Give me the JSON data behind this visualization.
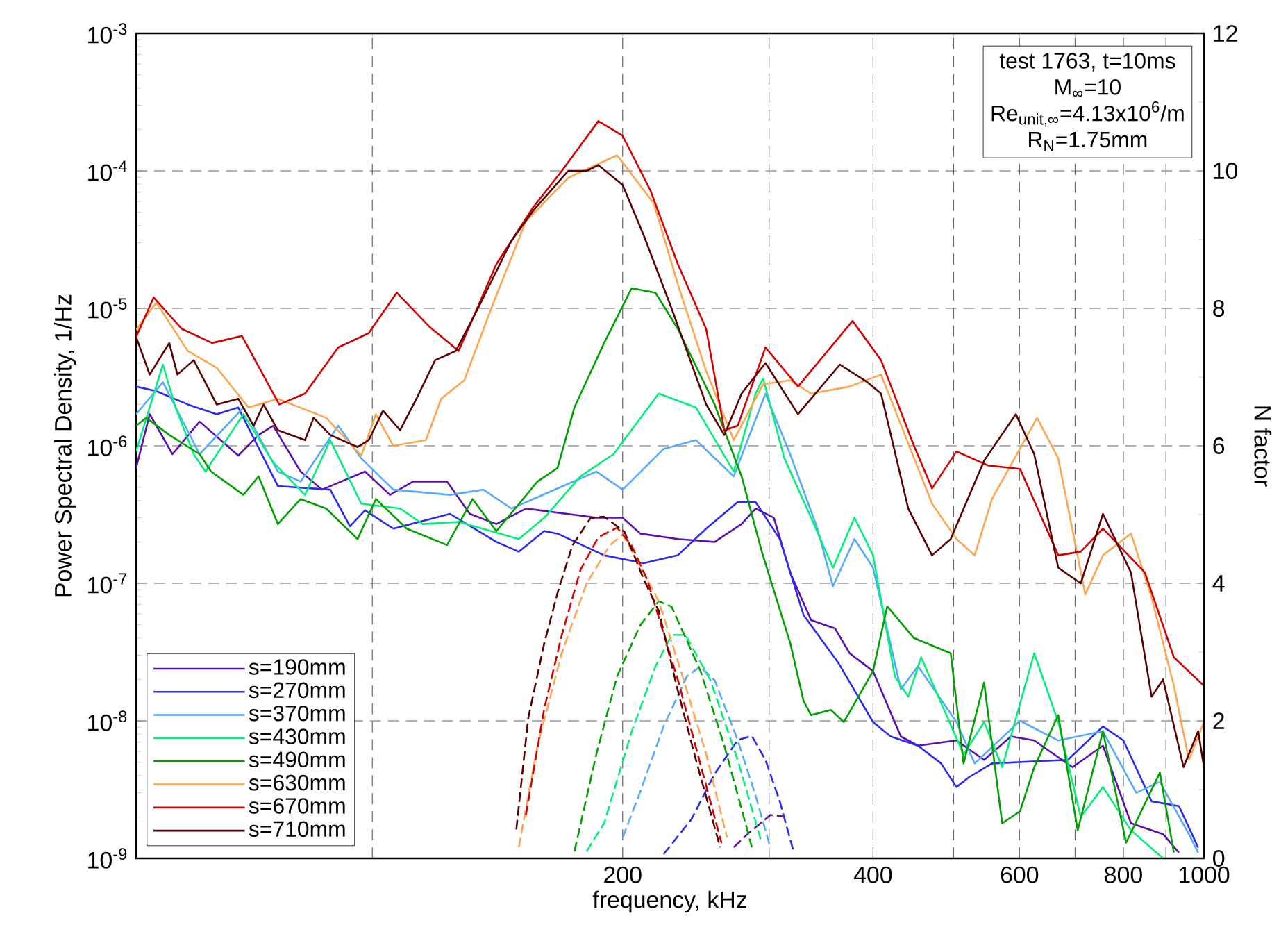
{
  "chart_data": {
    "type": "line",
    "xlabel": "frequency, kHz",
    "ylabel": "Power Spectral Density, 1/Hz",
    "y2label": "N factor",
    "log": "xy",
    "grid": true,
    "legend": "bottom left",
    "marker": "none",
    "xlim": [
      52,
      1000
    ],
    "ylim": [
      1e-09,
      0.001
    ],
    "y2lim": [
      0,
      12
    ],
    "xticks": [
      {
        "value": 100,
        "label": null
      },
      200,
      {
        "value": 300,
        "label": null
      },
      400,
      {
        "value": 500,
        "label": null
      },
      600,
      {
        "value": 700,
        "label": null
      },
      800,
      {
        "value": 900,
        "label": null
      },
      1000
    ],
    "yticks": [
      {
        "value": 1e-09,
        "label": "10$^{-9}$"
      },
      {
        "value": 1e-08,
        "label": "10$^{-8}$"
      },
      {
        "value": 1e-07,
        "label": "10$^{-7}$"
      },
      {
        "value": 1e-06,
        "label": "10$^{-6}$"
      },
      {
        "value": 1e-05,
        "label": "10$^{-5}$"
      },
      {
        "value": 0.0001,
        "label": "10$^{-4}$"
      },
      {
        "value": 0.001,
        "label": "10$^{-3}$"
      }
    ],
    "y2ticks": [
      0,
      2,
      4,
      6,
      8,
      10,
      12
    ],
    "annotations": [
      "test 1763, t=10ms",
      "M$_{∞}$=10",
      "Re$_{unit,∞}$=4.13x10$^{6}$/m",
      "R$_{N}$=1.75mm"
    ],
    "series": [
      {
        "name": "s=190mm",
        "color": "#5b0fae",
        "line_style": "solid",
        "x": [
          52,
          54,
          57.5,
          62,
          69,
          73,
          76,
          82,
          87,
          98,
          105,
          112,
          123,
          131,
          141,
          153,
          186,
          200,
          210,
          233,
          258,
          278,
          289,
          304,
          318,
          337,
          360,
          375,
          400,
          432,
          453,
          504,
          544,
          586,
          625,
          695,
          756,
          817,
          893,
          933
        ],
        "values": [
          6.9e-07,
          1.7e-06,
          8.7e-07,
          1.5e-06,
          8.5e-07,
          1.2e-06,
          1.4e-06,
          6.5e-07,
          4.8e-07,
          6.5e-07,
          4.4e-07,
          5.5e-07,
          5.5e-07,
          3.2e-07,
          2.7e-07,
          3.5e-07,
          3e-07,
          3e-07,
          2.3e-07,
          2.1e-07,
          2e-07,
          2.7e-07,
          3.5e-07,
          3e-07,
          1.2e-07,
          5.4e-08,
          4.7e-08,
          3.1e-08,
          2.3e-08,
          7.7e-09,
          6.6e-09,
          7.2e-09,
          5.2e-09,
          7.7e-09,
          7.2e-09,
          4.6e-09,
          6.6e-09,
          1.8e-09,
          1.5e-09,
          1.1e-09
        ]
      },
      {
        "name": "s=270mm",
        "color": "#2a2af5",
        "line_style": "solid",
        "x": [
          52,
          55,
          60,
          65,
          69,
          77,
          89,
          94,
          98,
          106,
          124,
          141,
          150,
          161,
          167,
          190,
          212,
          233,
          252,
          275,
          289,
          309,
          330,
          364,
          400,
          420,
          453,
          483,
          504,
          522,
          556,
          635,
          686,
          756,
          800,
          865,
          933,
          984
        ],
        "values": [
          2.7e-06,
          2.5e-06,
          2e-06,
          1.7e-06,
          1.9e-06,
          5.1e-07,
          4.8e-07,
          2.6e-07,
          3.4e-07,
          2.5e-07,
          3.2e-07,
          2e-07,
          1.7e-07,
          2.4e-07,
          2.3e-07,
          1.6e-07,
          1.4e-07,
          1.6e-07,
          2.5e-07,
          3.9e-07,
          3.9e-07,
          2.1e-07,
          5.9e-08,
          2.6e-08,
          9.8e-09,
          7.7e-09,
          6.6e-09,
          4.9e-09,
          3.3e-09,
          3.9e-09,
          4.9e-09,
          5.1e-09,
          5.2e-09,
          9.1e-09,
          7.2e-09,
          2.6e-09,
          2.4e-09,
          1.2e-09
        ]
      },
      {
        "name": "s=370mm",
        "color": "#55aaff",
        "line_style": "solid",
        "x": [
          52,
          56,
          62,
          70,
          77,
          82,
          91,
          97,
          106,
          124,
          136,
          147,
          186,
          200,
          224,
          245,
          272,
          297,
          318,
          343,
          358,
          380,
          400,
          432,
          453,
          504,
          530,
          601,
          668,
          756,
          829,
          885,
          959,
          984
        ],
        "values": [
          1.7e-06,
          2.9e-06,
          8.7e-07,
          1.9e-06,
          6.5e-07,
          5.5e-07,
          1.4e-06,
          8.1e-07,
          4.8e-07,
          4.4e-07,
          4.8e-07,
          3.5e-07,
          6.5e-07,
          4.8e-07,
          9.5e-07,
          1.1e-06,
          6e-07,
          2.4e-06,
          8.7e-07,
          2.5e-07,
          9.5e-08,
          2.1e-07,
          1.3e-07,
          1.7e-08,
          2.5e-08,
          9.8e-09,
          4.9e-09,
          1e-08,
          7.2e-09,
          8.4e-09,
          3e-09,
          3.6e-09,
          1.5e-09,
          1.1e-09
        ]
      },
      {
        "name": "s=430mm",
        "color": "#00f07a",
        "line_style": "solid",
        "x": [
          52,
          56,
          58,
          61,
          63,
          70,
          76,
          83,
          89,
          97,
          108,
          115,
          127,
          150,
          161,
          178,
          195,
          221,
          245,
          272,
          289,
          295,
          313,
          337,
          358,
          380,
          400,
          425,
          441,
          457,
          514,
          544,
          572,
          625,
          668,
          711,
          756,
          817,
          893
        ],
        "values": [
          9.1e-07,
          3.9e-06,
          1.9e-06,
          8.7e-07,
          6.5e-07,
          1.7e-06,
          7.6e-07,
          4.4e-07,
          1.1e-06,
          3.8e-07,
          3.5e-07,
          2.7e-07,
          2.8e-07,
          2.1e-07,
          3e-07,
          6e-07,
          8.7e-07,
          2.4e-06,
          1.9e-06,
          6.5e-07,
          2.4e-06,
          3.1e-06,
          8.1e-07,
          3e-07,
          1.3e-07,
          3e-07,
          1.6e-07,
          2.1e-08,
          1.5e-08,
          2.9e-08,
          5.7e-09,
          9.8e-09,
          4.6e-09,
          3.1e-08,
          9.8e-09,
          2e-09,
          3.3e-09,
          1.6e-09,
          1e-09
        ]
      },
      {
        "name": "s=490mm",
        "color": "#00a000",
        "line_style": "solid",
        "x": [
          52,
          53.5,
          57,
          62,
          64,
          70,
          73,
          77,
          82,
          88,
          96,
          101,
          110,
          123,
          132,
          141,
          158,
          167,
          175,
          190,
          205,
          219,
          233,
          258,
          278,
          294,
          318,
          330,
          337,
          356,
          369,
          400,
          416,
          448,
          496,
          514,
          544,
          572,
          601,
          625,
          668,
          705,
          756,
          806,
          885,
          920
        ],
        "values": [
          1.4e-06,
          1.6e-06,
          1.2e-06,
          8.7e-07,
          6.5e-07,
          4.4e-07,
          6e-07,
          2.7e-07,
          4.1e-07,
          3.5e-07,
          2.1e-07,
          4.1e-07,
          2.5e-07,
          1.9e-07,
          4.1e-07,
          2.4e-07,
          5.5e-07,
          6.9e-07,
          1.9e-06,
          5.6e-06,
          1.4e-05,
          1.3e-05,
          7.1e-06,
          2e-06,
          6e-07,
          1.7e-07,
          3.7e-08,
          1.4e-08,
          1.1e-08,
          1.2e-08,
          9.8e-09,
          2.3e-08,
          6.8e-08,
          4e-08,
          3.1e-08,
          4.9e-09,
          1.9e-08,
          1.8e-09,
          2.2e-09,
          4.6e-09,
          1.1e-08,
          1.6e-09,
          8.4e-09,
          1.3e-09,
          4.2e-09,
          1.1e-09
        ]
      },
      {
        "name": "s=630mm",
        "color": "#ffa54f",
        "line_style": "solid",
        "x": [
          52,
          55,
          60,
          65,
          71,
          77,
          88,
          97,
          101,
          106,
          116,
          121,
          129,
          139,
          153,
          172,
          197,
          218,
          233,
          252,
          272,
          295,
          318,
          337,
          375,
          409,
          471,
          504,
          530,
          556,
          630,
          668,
          720,
          756,
          817,
          865,
          920,
          959,
          1000
        ],
        "values": [
          7e-06,
          1.1e-05,
          4.9e-06,
          3.7e-06,
          1.9e-06,
          2.2e-06,
          1.6e-06,
          8.5e-07,
          1.7e-06,
          1e-06,
          1.1e-06,
          2.2e-06,
          3e-06,
          1e-05,
          4.3e-05,
          8.9e-05,
          0.00013,
          5.8e-05,
          1.5e-05,
          3.5e-06,
          1.1e-06,
          2.8e-06,
          3e-06,
          2.4e-06,
          2.7e-06,
          3.3e-06,
          3.8e-07,
          2.1e-07,
          1.6e-07,
          4.1e-07,
          1.6e-06,
          8.1e-07,
          8.3e-08,
          1.6e-07,
          2.3e-07,
          7.9e-08,
          1.8e-08,
          5.2e-09,
          9.8e-09
        ]
      },
      {
        "name": "s=670mm",
        "color": "#d40000",
        "line_style": "solid",
        "x": [
          52,
          54.6,
          59,
          64.2,
          69.7,
          77.3,
          83,
          91,
          99,
          107,
          117,
          127,
          141,
          156,
          169,
          187,
          200,
          216,
          233,
          252,
          265,
          275,
          297,
          325,
          378,
          409,
          448,
          471,
          504,
          550,
          601,
          668,
          711,
          756,
          849,
          920,
          1000
        ],
        "values": [
          6.2e-06,
          1.2e-05,
          7.1e-06,
          5.6e-06,
          6.3e-06,
          2e-06,
          2.4e-06,
          5.2e-06,
          6.6e-06,
          1.3e-05,
          7.4e-06,
          4.9e-06,
          2.1e-05,
          5.4e-05,
          0.0001,
          0.00023,
          0.00018,
          7.2e-05,
          2.1e-05,
          7.1e-06,
          1.3e-06,
          1.4e-06,
          5.2e-06,
          2.7e-06,
          8.1e-06,
          4.2e-06,
          1e-06,
          4.9e-07,
          9.1e-07,
          7.2e-07,
          6.8e-07,
          1.6e-07,
          1.7e-07,
          2.5e-07,
          1.2e-07,
          2.9e-08,
          1.8e-08
        ]
      },
      {
        "name": "s=710mm",
        "color": "#5a0000",
        "line_style": "solid",
        "x": [
          52,
          54,
          57,
          58.3,
          61,
          65,
          69,
          72,
          74,
          77,
          83,
          85,
          89,
          96,
          99,
          103,
          108,
          113,
          119,
          126,
          134,
          147,
          156,
          172,
          181,
          187,
          200,
          212,
          229,
          252,
          265,
          278,
          297,
          325,
          365,
          394,
          409,
          441,
          471,
          496,
          544,
          594,
          625,
          668,
          711,
          756,
          817,
          865,
          893,
          945,
          984,
          1000
        ],
        "values": [
          6.2e-06,
          3.3e-06,
          5.6e-06,
          3.3e-06,
          4.2e-06,
          2e-06,
          2.2e-06,
          1.4e-06,
          2e-06,
          1.3e-06,
          1.1e-06,
          1.6e-06,
          1.2e-06,
          9.8e-07,
          1.1e-06,
          1.8e-06,
          1.3e-06,
          2.2e-06,
          4.2e-06,
          4.9e-06,
          1e-05,
          3.1e-05,
          5.1e-05,
          0.0001,
          0.0001,
          0.00011,
          7.9e-05,
          3.4e-05,
          1e-05,
          2e-06,
          1.2e-06,
          2.4e-06,
          4e-06,
          1.7e-06,
          3.9e-06,
          2.9e-06,
          2.4e-06,
          3.5e-07,
          1.6e-07,
          2.1e-07,
          7.8e-07,
          1.7e-06,
          8.7e-07,
          1.3e-07,
          1e-07,
          3.2e-07,
          1.2e-07,
          1.5e-08,
          2e-08,
          4.6e-09,
          8.4e-09,
          4.6e-09
        ]
      },
      {
        "color": "#5b0fae",
        "line_style": "dashed",
        "axis": "y2",
        "x": [
          272,
          283,
          301,
          313
        ],
        "values": [
          0.16,
          0.36,
          0.63,
          0.61
        ]
      },
      {
        "color": "#2a2af5",
        "line_style": "dashed",
        "axis": "y2",
        "x": [
          224,
          242,
          258,
          275,
          286,
          297,
          309,
          321
        ],
        "values": [
          0.06,
          0.57,
          1.23,
          1.72,
          1.78,
          1.43,
          0.83,
          0.1
        ]
      },
      {
        "color": "#55aaff",
        "line_style": "dashed",
        "axis": "y2",
        "x": [
          200,
          210,
          224,
          239,
          248,
          258,
          275,
          289,
          301
        ],
        "values": [
          0.3,
          0.97,
          1.92,
          2.65,
          2.79,
          2.59,
          1.72,
          0.91,
          0.16
        ]
      },
      {
        "color": "#00f07a",
        "line_style": "dashed",
        "axis": "y2",
        "x": [
          181,
          190,
          205,
          219,
          229,
          238,
          255,
          275,
          294
        ],
        "values": [
          0.1,
          0.51,
          1.84,
          2.79,
          3.25,
          3.25,
          2.59,
          1.43,
          0.22
        ]
      },
      {
        "color": "#00a000",
        "line_style": "dashed",
        "axis": "y2",
        "x": [
          175,
          186,
          197,
          210,
          221,
          229,
          248,
          265,
          281,
          286
        ],
        "values": [
          0.1,
          1.52,
          2.65,
          3.39,
          3.74,
          3.66,
          2.73,
          1.64,
          0.51,
          0.16
        ]
      },
      {
        "color": "#ffa54f",
        "line_style": "dashed",
        "axis": "y2",
        "x": [
          150,
          158,
          169,
          181,
          193,
          200,
          208,
          221,
          236,
          252,
          267
        ],
        "values": [
          0.16,
          1.64,
          2.99,
          4.0,
          4.55,
          4.71,
          4.34,
          3.74,
          2.65,
          1.52,
          0.3
        ]
      },
      {
        "color": "#d40000",
        "line_style": "dashed",
        "axis": "y2",
        "x": [
          153,
          161,
          169,
          178,
          187,
          197,
          205,
          214,
          234,
          248,
          263
        ],
        "values": [
          0.63,
          2.18,
          3.25,
          4.2,
          4.67,
          4.81,
          4.55,
          4.06,
          2.52,
          1.37,
          0.22
        ]
      },
      {
        "color": "#5a0000",
        "line_style": "dashed",
        "axis": "y2",
        "x": [
          149,
          154,
          161,
          167,
          174,
          183,
          190,
          201,
          212,
          221,
          233,
          245,
          262
        ],
        "values": [
          0.42,
          2.04,
          3.13,
          3.86,
          4.55,
          4.95,
          4.97,
          4.75,
          4.06,
          3.6,
          2.44,
          1.43,
          0.16
        ]
      }
    ]
  }
}
